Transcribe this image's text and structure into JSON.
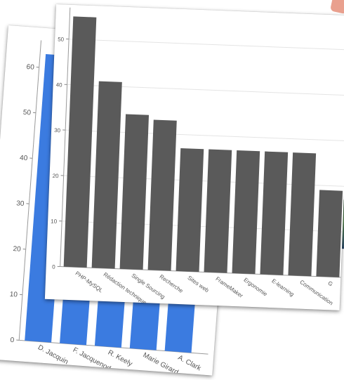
{
  "chart_data": [
    {
      "type": "bar",
      "categories": [
        "D. Jacquin",
        "F. Jacquenod",
        "R. Keely",
        "Marie Girard",
        "A. Clark"
      ],
      "values": [
        63,
        46,
        39,
        35,
        31
      ],
      "yticks": [
        0,
        10,
        20,
        30,
        40,
        50,
        60
      ],
      "ylim": [
        0,
        65
      ],
      "title": "",
      "xlabel": "",
      "ylabel": "",
      "grid": false,
      "color": "#3b7be0"
    },
    {
      "type": "bar",
      "categories": [
        "PHP-MySQL",
        "Rédaction technique",
        "Single Sourcing",
        "Recherche",
        "Sites web",
        "FrameMaker",
        "Ergonomie",
        "E-learning",
        "Communication",
        "G"
      ],
      "values": [
        55,
        41,
        34,
        33,
        27,
        27,
        27,
        27,
        27,
        19
      ],
      "yticks": [
        0,
        10,
        20,
        30,
        40,
        50
      ],
      "ylim": [
        0,
        56
      ],
      "title": "",
      "xlabel": "",
      "ylabel": "",
      "grid": true,
      "color": "#5a5a5a"
    }
  ]
}
